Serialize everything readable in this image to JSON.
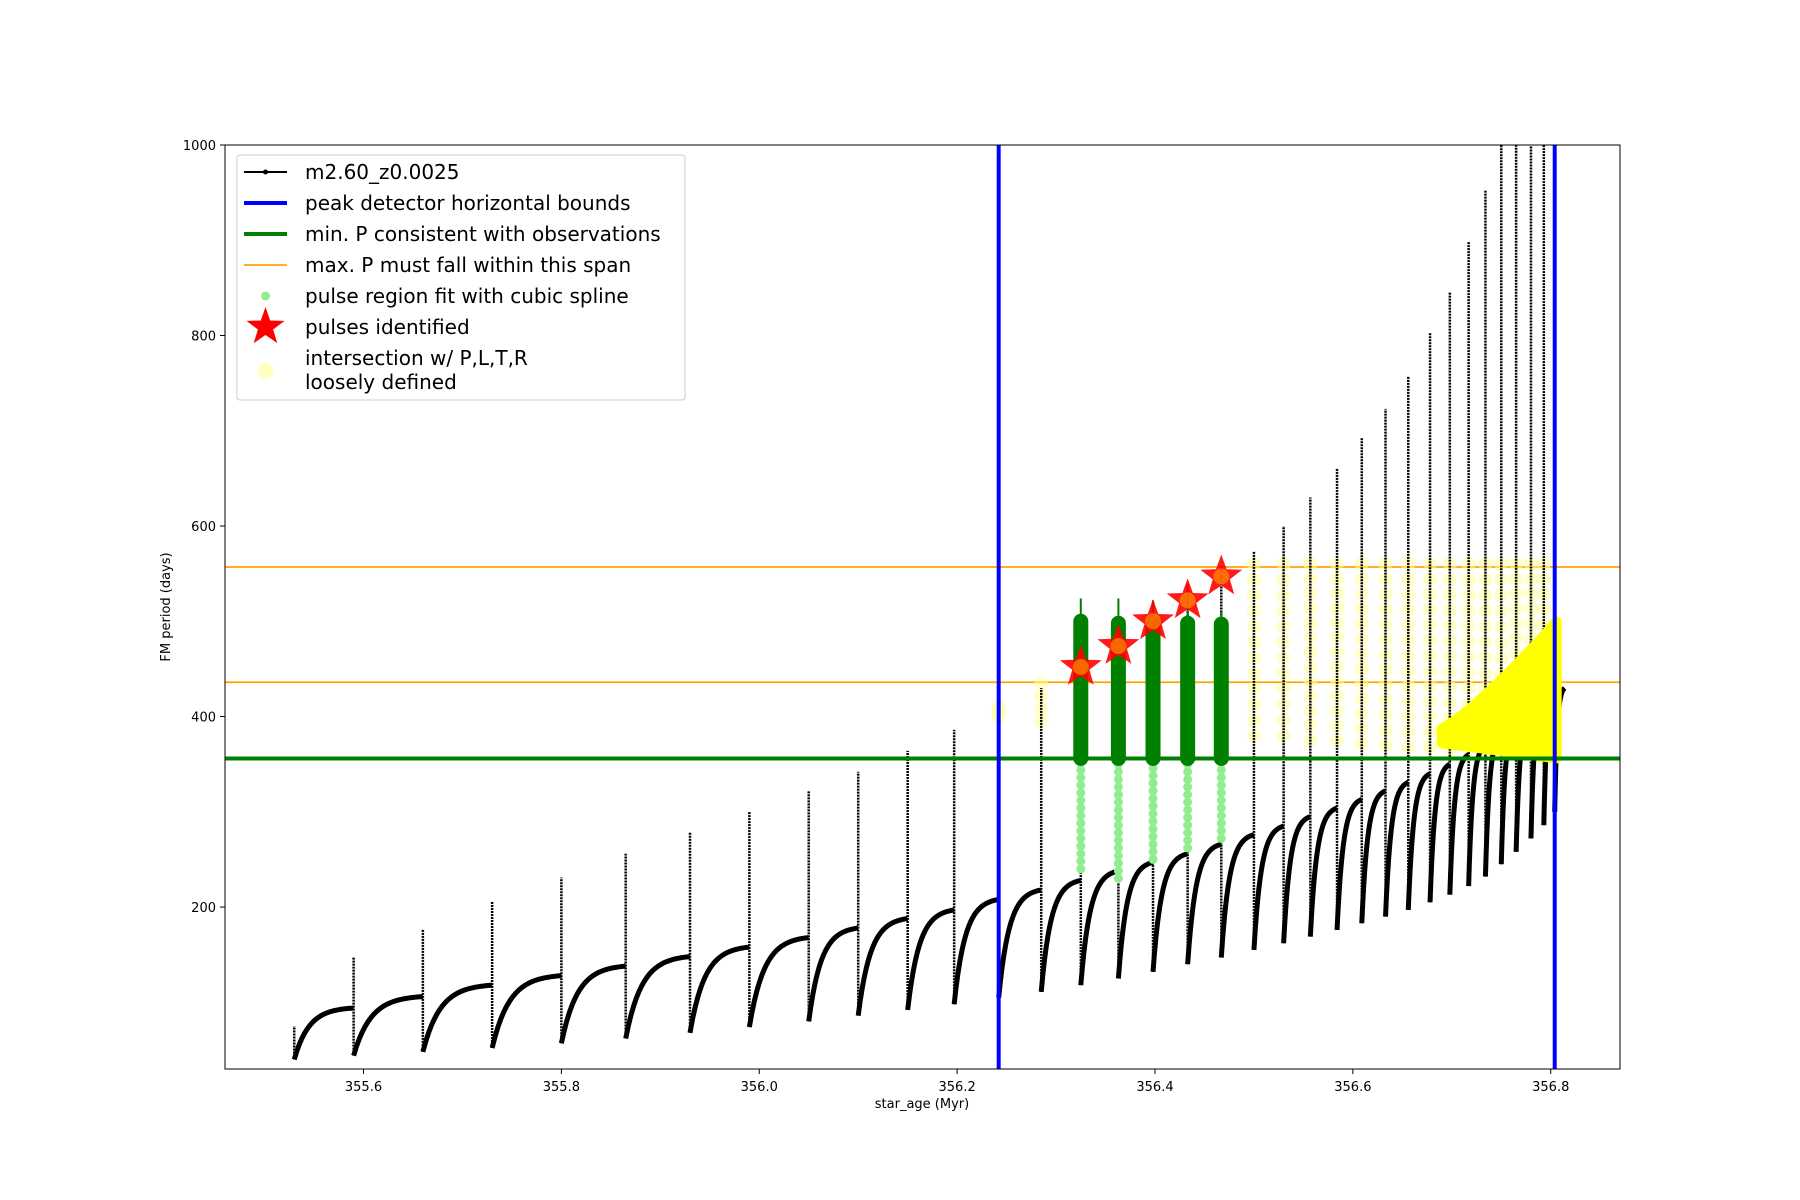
{
  "chart_data": {
    "type": "scatter",
    "title": "",
    "xlabel": "star_age (Myr)",
    "ylabel": "FM period (days)",
    "xlim": [
      355.46,
      356.87
    ],
    "ylim": [
      30,
      1000
    ],
    "x_ticks": [
      "355.6",
      "355.8",
      "356.0",
      "356.2",
      "356.4",
      "356.6",
      "356.8"
    ],
    "y_ticks": [
      "200",
      "400",
      "600",
      "800",
      "1000"
    ],
    "grid": false,
    "legend_position": "upper-left",
    "legend": [
      {
        "label": "m2.60_z0.0025",
        "style": "line-dot",
        "color": "#000000"
      },
      {
        "label": "peak detector horizontal bounds",
        "style": "line",
        "color": "#0000ff"
      },
      {
        "label": "min. P consistent with observations",
        "style": "line",
        "color": "#008000"
      },
      {
        "label": "max. P must fall within this span",
        "style": "line",
        "color": "#ffa500"
      },
      {
        "label": "pulse region fit with cubic spline",
        "style": "dot",
        "color": "#90ee90"
      },
      {
        "label": "pulses identified",
        "style": "star",
        "color": "#ff0000"
      },
      {
        "label": "intersection w/ P,L,T,R",
        "label2": "loosely defined",
        "style": "circle",
        "color": "#ffff99"
      }
    ],
    "vertical_lines": {
      "x": [
        356.242,
        356.804
      ],
      "color": "#0000ff",
      "name": "peak detector horizontal bounds"
    },
    "min_period_line": {
      "y": 356,
      "color": "#008000",
      "name": "min. P consistent with observations"
    },
    "max_period_span": {
      "y": [
        436,
        557
      ],
      "color": "#ffa500",
      "name": "max. P must fall within this span"
    },
    "pulses": [
      {
        "x": 355.53,
        "base": 40,
        "top": 94,
        "spike": 75
      },
      {
        "x": 355.59,
        "base": 44,
        "top": 106,
        "spike": 147
      },
      {
        "x": 355.66,
        "base": 48,
        "top": 118,
        "spike": 176
      },
      {
        "x": 355.73,
        "base": 52,
        "top": 128,
        "spike": 206
      },
      {
        "x": 355.8,
        "base": 57,
        "top": 138,
        "spike": 231
      },
      {
        "x": 355.865,
        "base": 62,
        "top": 148,
        "spike": 256
      },
      {
        "x": 355.93,
        "base": 68,
        "top": 158,
        "spike": 278
      },
      {
        "x": 355.99,
        "base": 74,
        "top": 168,
        "spike": 300
      },
      {
        "x": 356.05,
        "base": 80,
        "top": 178,
        "spike": 322
      },
      {
        "x": 356.1,
        "base": 86,
        "top": 188,
        "spike": 342
      },
      {
        "x": 356.15,
        "base": 92,
        "top": 197,
        "spike": 364
      },
      {
        "x": 356.197,
        "base": 98,
        "top": 208,
        "spike": 386
      },
      {
        "x": 356.242,
        "base": 105,
        "top": 218,
        "spike": 404
      },
      {
        "x": 356.285,
        "base": 111,
        "top": 228,
        "spike": 430
      },
      {
        "x": 356.325,
        "base": 118,
        "top": 238,
        "spike": 482
      },
      {
        "x": 356.363,
        "base": 125,
        "top": 247,
        "spike": 500
      },
      {
        "x": 356.398,
        "base": 132,
        "top": 256,
        "spike": 520
      },
      {
        "x": 356.433,
        "base": 140,
        "top": 266,
        "spike": 540
      },
      {
        "x": 356.467,
        "base": 147,
        "top": 276,
        "spike": 558
      },
      {
        "x": 356.5,
        "base": 155,
        "top": 285,
        "spike": 573
      },
      {
        "x": 356.53,
        "base": 162,
        "top": 295,
        "spike": 600
      },
      {
        "x": 356.557,
        "base": 169,
        "top": 304,
        "spike": 630
      },
      {
        "x": 356.584,
        "base": 176,
        "top": 313,
        "spike": 660
      },
      {
        "x": 356.609,
        "base": 183,
        "top": 322,
        "spike": 693
      },
      {
        "x": 356.633,
        "base": 190,
        "top": 331,
        "spike": 723
      },
      {
        "x": 356.656,
        "base": 197,
        "top": 340,
        "spike": 757
      },
      {
        "x": 356.678,
        "base": 205,
        "top": 350,
        "spike": 803
      },
      {
        "x": 356.698,
        "base": 213,
        "top": 360,
        "spike": 846
      },
      {
        "x": 356.717,
        "base": 222,
        "top": 370,
        "spike": 898
      },
      {
        "x": 356.734,
        "base": 232,
        "top": 380,
        "spike": 952
      },
      {
        "x": 356.75,
        "base": 245,
        "top": 390,
        "spike": 1000
      },
      {
        "x": 356.765,
        "base": 258,
        "top": 400,
        "spike": 1000
      },
      {
        "x": 356.78,
        "base": 272,
        "top": 410,
        "spike": 1000
      },
      {
        "x": 356.793,
        "base": 286,
        "top": 420,
        "spike": 1000
      },
      {
        "x": 356.804,
        "base": 300,
        "top": 430,
        "spike": 1000
      }
    ],
    "spline_pulses": [
      {
        "x": 356.325,
        "min": 240,
        "max": 500,
        "spike": 524
      },
      {
        "x": 356.363,
        "min": 230,
        "max": 498,
        "spike": 524
      },
      {
        "x": 356.398,
        "min": 250,
        "max": 497,
        "spike": 522
      },
      {
        "x": 356.433,
        "min": 262,
        "max": 498,
        "spike": 515
      },
      {
        "x": 356.467,
        "min": 272,
        "max": 497,
        "spike": 510
      }
    ],
    "identified_pulses": [
      {
        "x": 356.325,
        "y": 452
      },
      {
        "x": 356.363,
        "y": 474
      },
      {
        "x": 356.398,
        "y": 500
      },
      {
        "x": 356.433,
        "y": 522
      },
      {
        "x": 356.467,
        "y": 547
      }
    ],
    "loose_intersections": {
      "x": [
        356.242,
        356.285,
        356.5,
        356.53,
        356.557,
        356.584,
        356.609,
        356.633,
        356.656,
        356.678,
        356.698,
        356.717,
        356.734,
        356.75,
        356.765,
        356.78,
        356.793
      ],
      "y_min": [
        400,
        395,
        380,
        380,
        375,
        375,
        372,
        370,
        368,
        368,
        366,
        365,
        364,
        362,
        360,
        358,
        356
      ],
      "y_max": [
        410,
        435,
        560,
        560,
        560,
        560,
        560,
        560,
        560,
        560,
        560,
        560,
        560,
        560,
        560,
        560,
        560
      ]
    },
    "dense_intersections": {
      "x_start": 356.69,
      "x_end": 356.806,
      "y_low": [
        372,
        356
      ],
      "y_high": [
        388,
        500
      ]
    }
  }
}
